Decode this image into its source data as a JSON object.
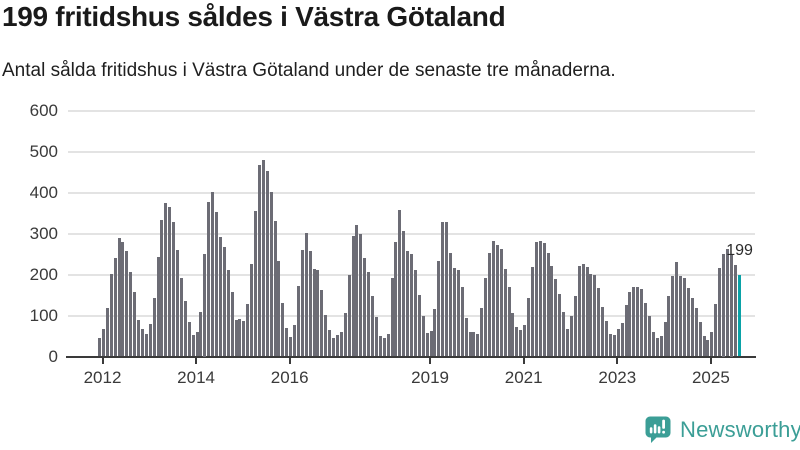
{
  "header": {
    "title": "199 fritidshus såldes i Västra Götaland",
    "subtitle": "Antal sålda fritidshus i Västra Götaland under de senaste tre månaderna."
  },
  "annotation": {
    "value_label": "199"
  },
  "branding": {
    "wordmark": "Newsworthy",
    "color": "#3b9e96"
  },
  "chart_data": {
    "type": "bar",
    "title": "199 fritidshus såldes i Västra Götaland",
    "subtitle": "Antal sålda fritidshus i Västra Götaland under de senaste tre månaderna.",
    "ylim": [
      0,
      600
    ],
    "yticks": [
      0,
      100,
      200,
      300,
      400,
      500,
      600
    ],
    "xtick_years": [
      2012,
      2014,
      2016,
      2019,
      2021,
      2023,
      2025
    ],
    "grid": true,
    "bar_color": "#6c6c75",
    "highlight_color": "#0aa2a7",
    "start_month": "2012-01",
    "end_month": "2025-09",
    "values_by_year": {
      "2012": [
        45,
        67,
        118,
        201,
        241,
        290,
        280,
        258,
        207,
        158,
        89,
        67
      ],
      "2013": [
        54,
        79,
        144,
        244,
        333,
        376,
        366,
        329,
        260,
        191,
        136,
        84
      ],
      "2014": [
        53,
        61,
        110,
        250,
        378,
        401,
        354,
        293,
        268,
        211,
        157,
        89
      ],
      "2015": [
        92,
        87,
        128,
        225,
        355,
        468,
        480,
        453,
        401,
        331,
        233,
        130
      ],
      "2016": [
        70,
        48,
        76,
        173,
        261,
        302,
        258,
        214,
        212,
        162,
        102,
        66
      ],
      "2017": [
        45,
        52,
        60,
        106,
        200,
        295,
        322,
        300,
        241,
        206,
        147,
        97
      ],
      "2018": [
        50,
        45,
        55,
        192,
        280,
        357,
        306,
        257,
        251,
        212,
        151,
        100
      ],
      "2019": [
        57,
        63,
        117,
        234,
        329,
        330,
        253,
        216,
        211,
        169,
        94,
        61
      ],
      "2020": [
        61,
        55,
        118,
        193,
        252,
        283,
        273,
        263,
        214,
        169,
        106,
        71
      ],
      "2021": [
        65,
        77,
        143,
        218,
        280,
        283,
        278,
        253,
        222,
        190,
        152,
        109
      ],
      "2022": [
        68,
        98,
        149,
        221,
        225,
        218,
        201,
        199,
        168,
        122,
        87,
        55
      ],
      "2023": [
        53,
        68,
        82,
        126,
        158,
        169,
        171,
        165,
        130,
        98,
        61,
        45
      ],
      "2024": [
        51,
        84,
        149,
        198,
        232,
        196,
        192,
        168,
        144,
        118,
        85,
        49
      ],
      "2025": [
        41,
        61,
        128,
        216,
        250,
        262,
        250,
        224,
        199
      ]
    },
    "highlight": {
      "year": 2025,
      "value": 199,
      "label": "199"
    }
  }
}
